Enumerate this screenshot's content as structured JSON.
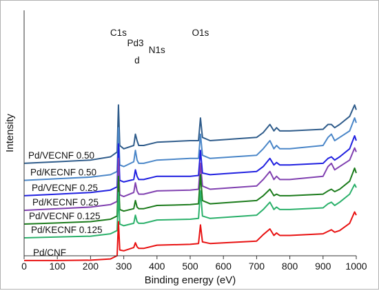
{
  "chart_data": {
    "type": "line",
    "title": "",
    "xlabel": "Binding energy (eV)",
    "ylabel": "Intensity",
    "xlim": [
      0,
      1000
    ],
    "x_ticks": [
      0,
      100,
      200,
      300,
      400,
      500,
      600,
      700,
      800,
      900,
      1000
    ],
    "y_ticks": [],
    "grid": false,
    "legend": "none",
    "peak_annotations": [
      {
        "text": "C1s",
        "x": 284
      },
      {
        "text": "Pd3",
        "x": 335
      },
      {
        "text": "d",
        "x": 340
      },
      {
        "text": "N1s",
        "x": 400
      },
      {
        "text": "O1s",
        "x": 531
      }
    ],
    "series": [
      {
        "name": "Pd/VECNF 0.50",
        "color": "#2e5b8a",
        "x": [
          0,
          100,
          200,
          260,
          280,
          284,
          288,
          300,
          330,
          335,
          340,
          345,
          360,
          400,
          500,
          525,
          531,
          537,
          560,
          700,
          720,
          740,
          752,
          760,
          770,
          800,
          900,
          915,
          925,
          935,
          950,
          980,
          995,
          1000
        ],
        "y": [
          4.6,
          4.7,
          4.8,
          5.0,
          5.3,
          8.2,
          5.7,
          5.5,
          5.7,
          6.4,
          6.0,
          5.7,
          5.7,
          5.9,
          6.0,
          6.0,
          7.4,
          6.2,
          6.0,
          6.2,
          6.5,
          7.0,
          6.6,
          6.8,
          6.6,
          6.6,
          6.7,
          7.0,
          7.0,
          6.8,
          7.0,
          7.5,
          8.2,
          7.9
        ]
      },
      {
        "name": "Pd/KECNF 0.50",
        "color": "#4a86c8",
        "x": [
          0,
          100,
          200,
          260,
          280,
          284,
          288,
          300,
          330,
          335,
          340,
          345,
          360,
          400,
          500,
          525,
          531,
          537,
          560,
          700,
          720,
          740,
          752,
          760,
          770,
          800,
          900,
          915,
          925,
          935,
          950,
          980,
          995,
          1000
        ],
        "y": [
          3.55,
          3.65,
          3.75,
          3.9,
          4.1,
          6.8,
          4.5,
          4.4,
          4.7,
          5.4,
          4.8,
          4.6,
          4.6,
          4.8,
          4.9,
          4.9,
          6.4,
          5.1,
          4.9,
          5.1,
          5.5,
          6.0,
          5.5,
          5.7,
          5.5,
          5.5,
          5.7,
          6.2,
          6.4,
          6.0,
          6.2,
          6.6,
          7.4,
          7.1
        ]
      },
      {
        "name": "Pd/VECNF 0.25",
        "color": "#1f1fe0",
        "x": [
          0,
          100,
          200,
          260,
          280,
          284,
          288,
          300,
          330,
          335,
          340,
          345,
          360,
          400,
          500,
          525,
          531,
          537,
          560,
          700,
          720,
          740,
          752,
          760,
          770,
          800,
          900,
          915,
          925,
          935,
          950,
          980,
          995,
          1000
        ],
        "y": [
          2.6,
          2.7,
          2.8,
          2.95,
          3.15,
          5.8,
          3.55,
          3.45,
          3.6,
          4.2,
          3.8,
          3.6,
          3.6,
          3.8,
          3.8,
          3.85,
          5.4,
          4.0,
          3.9,
          4.1,
          4.4,
          4.9,
          4.5,
          4.65,
          4.5,
          4.5,
          4.6,
          4.9,
          5.0,
          4.8,
          5.0,
          5.5,
          6.3,
          6.0
        ]
      },
      {
        "name": "Pd/KECNF 0.25",
        "color": "#8040b0",
        "x": [
          0,
          100,
          200,
          260,
          280,
          284,
          288,
          300,
          330,
          335,
          340,
          345,
          360,
          400,
          500,
          525,
          531,
          537,
          560,
          700,
          720,
          740,
          752,
          760,
          770,
          800,
          900,
          915,
          925,
          935,
          950,
          980,
          995,
          1000
        ],
        "y": [
          1.7,
          1.8,
          1.9,
          2.05,
          2.25,
          4.9,
          2.65,
          2.55,
          2.8,
          3.4,
          2.9,
          2.7,
          2.7,
          2.9,
          2.95,
          3.0,
          4.6,
          3.2,
          3.0,
          3.2,
          3.6,
          4.1,
          3.6,
          3.8,
          3.6,
          3.6,
          3.8,
          4.4,
          4.6,
          4.2,
          4.4,
          4.8,
          5.55,
          5.3
        ]
      },
      {
        "name": "Pd/VECNF 0.125",
        "color": "#1a7a1a",
        "x": [
          0,
          100,
          200,
          260,
          280,
          284,
          288,
          300,
          330,
          335,
          340,
          345,
          360,
          400,
          500,
          525,
          531,
          537,
          560,
          700,
          720,
          740,
          752,
          760,
          770,
          800,
          900,
          915,
          925,
          935,
          950,
          980,
          995,
          1000
        ],
        "y": [
          0.85,
          0.92,
          1.0,
          1.15,
          1.35,
          3.8,
          1.75,
          1.65,
          1.8,
          2.3,
          1.9,
          1.8,
          1.8,
          2.0,
          2.05,
          2.1,
          3.9,
          2.3,
          2.1,
          2.3,
          2.6,
          3.0,
          2.6,
          2.7,
          2.6,
          2.6,
          2.7,
          2.9,
          3.0,
          2.85,
          3.0,
          3.5,
          4.3,
          4.0
        ]
      },
      {
        "name": "Pd/KECNF 0.125",
        "color": "#2ab06a",
        "x": [
          0,
          100,
          200,
          260,
          280,
          284,
          288,
          300,
          330,
          335,
          340,
          345,
          360,
          400,
          500,
          525,
          531,
          537,
          560,
          700,
          720,
          740,
          752,
          760,
          770,
          800,
          900,
          915,
          925,
          935,
          950,
          980,
          995,
          1000
        ],
        "y": [
          0.0,
          0.05,
          0.1,
          0.25,
          0.45,
          2.8,
          0.85,
          0.75,
          0.9,
          1.4,
          1.0,
          0.9,
          0.9,
          1.1,
          1.15,
          1.2,
          2.9,
          1.35,
          1.2,
          1.4,
          1.75,
          2.2,
          1.75,
          1.9,
          1.75,
          1.75,
          1.85,
          2.1,
          2.2,
          2.0,
          2.2,
          2.7,
          3.3,
          3.1
        ]
      },
      {
        "name": "Pd/CNF",
        "color": "#e81010",
        "x": [
          0,
          100,
          200,
          260,
          280,
          284,
          288,
          300,
          330,
          335,
          340,
          345,
          360,
          400,
          500,
          525,
          531,
          537,
          560,
          700,
          720,
          740,
          752,
          760,
          770,
          800,
          900,
          915,
          925,
          935,
          950,
          980,
          995,
          1000
        ],
        "y": [
          -1.4,
          -1.4,
          -1.38,
          -1.3,
          -1.1,
          1.0,
          -0.75,
          -0.8,
          -0.6,
          -0.3,
          -0.55,
          -0.65,
          -0.65,
          -0.45,
          -0.4,
          -0.35,
          0.8,
          -0.25,
          -0.35,
          -0.2,
          0.2,
          0.55,
          0.15,
          0.3,
          0.15,
          0.15,
          0.25,
          0.4,
          0.5,
          0.35,
          0.45,
          0.9,
          1.6,
          1.4
        ]
      }
    ]
  }
}
